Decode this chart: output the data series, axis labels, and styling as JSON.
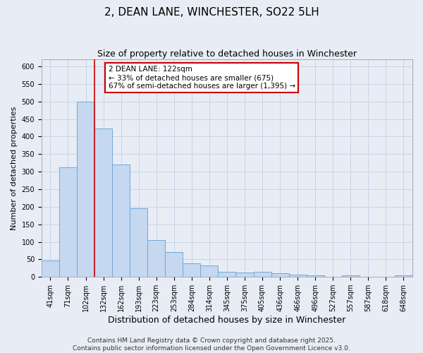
{
  "title": "2, DEAN LANE, WINCHESTER, SO22 5LH",
  "subtitle": "Size of property relative to detached houses in Winchester",
  "xlabel": "Distribution of detached houses by size in Winchester",
  "ylabel": "Number of detached properties",
  "categories": [
    "41sqm",
    "71sqm",
    "102sqm",
    "132sqm",
    "162sqm",
    "193sqm",
    "223sqm",
    "253sqm",
    "284sqm",
    "314sqm",
    "345sqm",
    "375sqm",
    "405sqm",
    "436sqm",
    "466sqm",
    "496sqm",
    "527sqm",
    "557sqm",
    "587sqm",
    "618sqm",
    "648sqm"
  ],
  "values": [
    46,
    313,
    500,
    424,
    320,
    195,
    105,
    70,
    38,
    32,
    14,
    12,
    14,
    10,
    6,
    4,
    0,
    4,
    0,
    0,
    4
  ],
  "bar_color": "#c5d8f0",
  "bar_edge_color": "#6fa8d8",
  "grid_color": "#c8d4e8",
  "background_color": "#e8edf5",
  "property_line_color": "#cc0000",
  "property_line_x": 2.5,
  "annotation_text": "2 DEAN LANE: 122sqm\n← 33% of detached houses are smaller (675)\n67% of semi-detached houses are larger (1,395) →",
  "annotation_box_color": "#ffffff",
  "annotation_box_edge": "#cc0000",
  "ylim": [
    0,
    620
  ],
  "yticks": [
    0,
    50,
    100,
    150,
    200,
    250,
    300,
    350,
    400,
    450,
    500,
    550,
    600
  ],
  "footnote": "Contains HM Land Registry data © Crown copyright and database right 2025.\nContains public sector information licensed under the Open Government Licence v3.0.",
  "title_fontsize": 11,
  "subtitle_fontsize": 9,
  "xlabel_fontsize": 9,
  "ylabel_fontsize": 8,
  "tick_fontsize": 7,
  "annot_fontsize": 7.5,
  "footnote_fontsize": 6.5
}
